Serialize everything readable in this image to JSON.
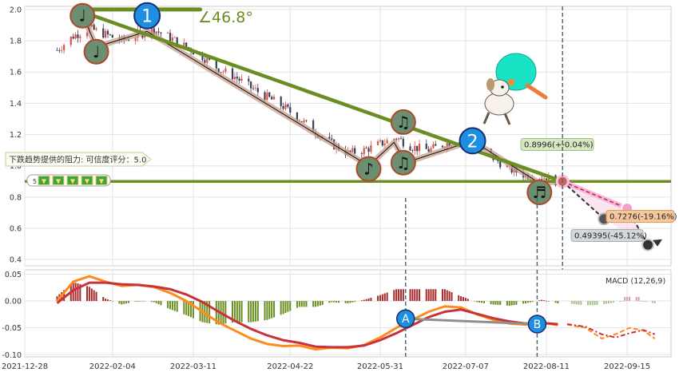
{
  "chart_data": [
    {
      "type": "candlestick",
      "panel": "price",
      "ylim": [
        0.36,
        2.02
      ],
      "yticks": [
        0.4,
        0.6,
        0.8,
        1.0,
        1.2,
        1.4,
        1.6,
        1.8,
        2.0
      ],
      "x_range": [
        "2021-12-28",
        "2022-10-04"
      ],
      "x_tick_labels": [
        "2021-12-28",
        "2022-02-04",
        "2022-03-11",
        "2022-04-22",
        "2022-05-31",
        "2022-07-07",
        "2022-08-11",
        "2022-09-15"
      ],
      "x_tick_dates": [
        "2021-12-28",
        "2022-02-04",
        "2022-03-11",
        "2022-04-22",
        "2022-05-31",
        "2022-07-07",
        "2022-08-11",
        "2022-09-15"
      ],
      "close_path": [
        [
          "2022-01-11",
          1.74
        ],
        [
          "2022-01-18",
          1.83
        ],
        [
          "2022-01-25",
          1.88
        ],
        [
          "2022-02-01",
          1.84
        ],
        [
          "2022-02-08",
          1.8
        ],
        [
          "2022-02-15",
          1.84
        ],
        [
          "2022-02-22",
          1.87
        ],
        [
          "2022-03-01",
          1.82
        ],
        [
          "2022-03-08",
          1.76
        ],
        [
          "2022-03-15",
          1.7
        ],
        [
          "2022-03-22",
          1.62
        ],
        [
          "2022-03-29",
          1.57
        ],
        [
          "2022-04-05",
          1.5
        ],
        [
          "2022-04-12",
          1.44
        ],
        [
          "2022-04-19",
          1.38
        ],
        [
          "2022-04-26",
          1.3
        ],
        [
          "2022-05-03",
          1.22
        ],
        [
          "2022-05-10",
          1.14
        ],
        [
          "2022-05-17",
          1.08
        ],
        [
          "2022-05-24",
          1.1
        ],
        [
          "2022-05-31",
          1.14
        ],
        [
          "2022-06-07",
          1.18
        ],
        [
          "2022-06-14",
          1.12
        ],
        [
          "2022-06-21",
          1.1
        ],
        [
          "2022-06-28",
          1.14
        ],
        [
          "2022-07-05",
          1.17
        ],
        [
          "2022-07-12",
          1.13
        ],
        [
          "2022-07-19",
          1.05
        ],
        [
          "2022-07-26",
          0.98
        ],
        [
          "2022-08-02",
          0.94
        ],
        [
          "2022-08-09",
          0.93
        ],
        [
          "2022-08-16",
          0.9
        ]
      ],
      "resistance_line": {
        "value": 0.9,
        "label": "下跌趋势提供的阻力: 可信度评分：5.0"
      },
      "trend_line": {
        "from": [
          "2022-01-21",
          1.99
        ],
        "to": [
          "2022-08-18",
          0.9
        ],
        "angle_label": "∠46.8°"
      },
      "forecast_points": [
        {
          "date": "2022-08-18",
          "value": 0.9,
          "label": "0.8996(+-0.04%)"
        },
        {
          "date": "2022-09-15",
          "value": 0.7276,
          "label": "0.7276(-19.16%)"
        },
        {
          "date": "2022-09-05",
          "value": 0.6603,
          "label": ""
        },
        {
          "date": "2022-09-24",
          "value": 0.49395,
          "label": "0.49395(-45.12%)"
        }
      ],
      "markers": [
        {
          "id": "1",
          "date": "2022-02-19",
          "value": 1.96
        },
        {
          "id": "2",
          "date": "2022-07-10",
          "value": 1.16
        }
      ],
      "note_badges": [
        {
          "glyph": "♩",
          "date": "2022-01-22",
          "value": 1.96
        },
        {
          "glyph": "♩",
          "date": "2022-01-28",
          "value": 1.73
        },
        {
          "glyph": "♪",
          "date": "2022-05-26",
          "value": 0.98
        },
        {
          "glyph": "♫",
          "date": "2022-06-10",
          "value": 1.28
        },
        {
          "glyph": "♫",
          "date": "2022-06-10",
          "value": 1.02
        },
        {
          "glyph": "♬",
          "date": "2022-08-08",
          "value": 0.83
        }
      ],
      "legend_badge_count": 5,
      "legend_badge_value": "5",
      "colors": {
        "up": "#d9534f",
        "down": "#3b3f54",
        "trend": "#6b8e23",
        "highlight": "#c8a08f",
        "forecast": "#c0226d",
        "marker": "#1e90e0"
      }
    },
    {
      "type": "macd",
      "panel": "indicator",
      "title": "MACD (12,26,9)",
      "ylim": [
        -0.1,
        0.05
      ],
      "yticks": [
        0.05,
        0.0,
        -0.05,
        -0.1
      ],
      "ytick_labels": [
        "0.05",
        "0.00",
        "-0.05",
        "-0.10"
      ],
      "dif_line": [
        [
          "2022-01-11",
          0.0
        ],
        [
          "2022-01-18",
          0.036
        ],
        [
          "2022-01-25",
          0.046
        ],
        [
          "2022-02-01",
          0.036
        ],
        [
          "2022-02-08",
          0.028
        ],
        [
          "2022-02-15",
          0.03
        ],
        [
          "2022-02-22",
          0.026
        ],
        [
          "2022-03-01",
          0.015
        ],
        [
          "2022-03-08",
          0.0
        ],
        [
          "2022-03-15",
          -0.02
        ],
        [
          "2022-03-22",
          -0.04
        ],
        [
          "2022-03-29",
          -0.055
        ],
        [
          "2022-04-05",
          -0.07
        ],
        [
          "2022-04-12",
          -0.08
        ],
        [
          "2022-04-19",
          -0.084
        ],
        [
          "2022-04-26",
          -0.083
        ],
        [
          "2022-05-03",
          -0.09
        ],
        [
          "2022-05-10",
          -0.087
        ],
        [
          "2022-05-17",
          -0.088
        ],
        [
          "2022-05-24",
          -0.082
        ],
        [
          "2022-05-31",
          -0.068
        ],
        [
          "2022-06-07",
          -0.05
        ],
        [
          "2022-06-14",
          -0.035
        ],
        [
          "2022-06-21",
          -0.02
        ],
        [
          "2022-06-28",
          -0.01
        ],
        [
          "2022-07-05",
          -0.012
        ],
        [
          "2022-07-12",
          -0.025
        ],
        [
          "2022-07-19",
          -0.035
        ],
        [
          "2022-07-26",
          -0.042
        ],
        [
          "2022-08-02",
          -0.044
        ],
        [
          "2022-08-09",
          -0.04
        ],
        [
          "2022-08-16",
          -0.045
        ]
      ],
      "dea_line": [
        [
          "2022-01-11",
          -0.004
        ],
        [
          "2022-01-18",
          0.02
        ],
        [
          "2022-01-25",
          0.034
        ],
        [
          "2022-02-01",
          0.034
        ],
        [
          "2022-02-08",
          0.031
        ],
        [
          "2022-02-15",
          0.03
        ],
        [
          "2022-02-22",
          0.027
        ],
        [
          "2022-03-01",
          0.022
        ],
        [
          "2022-03-08",
          0.012
        ],
        [
          "2022-03-15",
          -0.002
        ],
        [
          "2022-03-22",
          -0.02
        ],
        [
          "2022-03-29",
          -0.037
        ],
        [
          "2022-04-05",
          -0.052
        ],
        [
          "2022-04-12",
          -0.064
        ],
        [
          "2022-04-19",
          -0.073
        ],
        [
          "2022-04-26",
          -0.078
        ],
        [
          "2022-05-03",
          -0.085
        ],
        [
          "2022-05-10",
          -0.086
        ],
        [
          "2022-05-17",
          -0.086
        ],
        [
          "2022-05-24",
          -0.083
        ],
        [
          "2022-05-31",
          -0.073
        ],
        [
          "2022-06-07",
          -0.06
        ],
        [
          "2022-06-14",
          -0.045
        ],
        [
          "2022-06-21",
          -0.03
        ],
        [
          "2022-06-28",
          -0.02
        ],
        [
          "2022-07-05",
          -0.016
        ],
        [
          "2022-07-12",
          -0.024
        ],
        [
          "2022-07-19",
          -0.032
        ],
        [
          "2022-07-26",
          -0.038
        ],
        [
          "2022-08-02",
          -0.042
        ],
        [
          "2022-08-09",
          -0.041
        ],
        [
          "2022-08-16",
          -0.043
        ]
      ],
      "forecast_dif": [
        [
          "2022-08-20",
          -0.044
        ],
        [
          "2022-08-28",
          -0.05
        ],
        [
          "2022-09-04",
          -0.07
        ],
        [
          "2022-09-10",
          -0.062
        ],
        [
          "2022-09-16",
          -0.05
        ],
        [
          "2022-09-22",
          -0.055
        ],
        [
          "2022-09-27",
          -0.07
        ]
      ],
      "forecast_dea": [
        [
          "2022-08-20",
          -0.043
        ],
        [
          "2022-08-28",
          -0.048
        ],
        [
          "2022-09-04",
          -0.062
        ],
        [
          "2022-09-10",
          -0.068
        ],
        [
          "2022-09-16",
          -0.06
        ],
        [
          "2022-09-22",
          -0.054
        ],
        [
          "2022-09-27",
          -0.062
        ]
      ],
      "markers": [
        {
          "id": "A",
          "date": "2022-06-11",
          "value": -0.033
        },
        {
          "id": "B",
          "date": "2022-08-07",
          "value": -0.043
        }
      ],
      "colors": {
        "dif": "#ff8c1a",
        "dea": "#c8323a",
        "hist_pos": "#a52a2a",
        "hist_neg": "#6b8e23",
        "marker_link": "#8f8f8f"
      }
    }
  ]
}
